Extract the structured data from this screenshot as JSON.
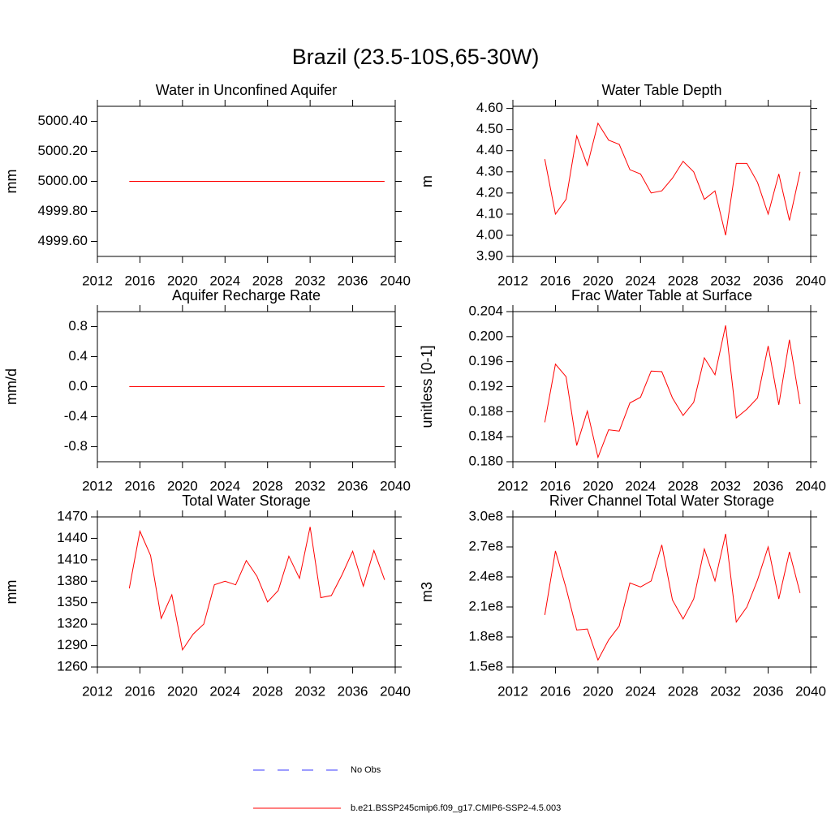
{
  "title": "Brazil (23.5-10S,65-30W)",
  "legend": [
    {
      "name": "No Obs",
      "color": "#3a3aff",
      "dashed": true
    },
    {
      "name": "b.e21.BSSP245cmip6.f09_g17.CMIP6-SSP2-4.5.003",
      "color": "#ff0000",
      "dashed": false
    }
  ],
  "chart_data": [
    {
      "type": "line",
      "title": "Water in Unconfined Aquifer",
      "y_label": "mm",
      "color": "#ff0000",
      "x": [
        2015,
        2016,
        2017,
        2018,
        2019,
        2020,
        2021,
        2022,
        2023,
        2024,
        2025,
        2026,
        2027,
        2028,
        2029,
        2030,
        2031,
        2032,
        2033,
        2034,
        2035,
        2036,
        2037,
        2038,
        2039
      ],
      "values": [
        5000,
        5000,
        5000,
        5000,
        5000,
        5000,
        5000,
        5000,
        5000,
        5000,
        5000,
        5000,
        5000,
        5000,
        5000,
        5000,
        5000,
        5000,
        5000,
        5000,
        5000,
        5000,
        5000,
        5000,
        5000
      ],
      "xlim": [
        2012,
        2040
      ],
      "xticks": [
        2012,
        2016,
        2020,
        2024,
        2028,
        2032,
        2036,
        2040
      ],
      "ylim": [
        4999.5,
        5000.5
      ],
      "yticks": [
        {
          "value": 4999.6,
          "label": "4999.60"
        },
        {
          "value": 4999.8,
          "label": "4999.80"
        },
        {
          "value": 5000,
          "label": "5000.00"
        },
        {
          "value": 5000.2,
          "label": "5000.20"
        },
        {
          "value": 5000.4,
          "label": "5000.40"
        }
      ]
    },
    {
      "type": "line",
      "title": "Water Table Depth",
      "y_label": "m",
      "color": "#ff0000",
      "x": [
        2015,
        2016,
        2017,
        2018,
        2019,
        2020,
        2021,
        2022,
        2023,
        2024,
        2025,
        2026,
        2027,
        2028,
        2029,
        2030,
        2031,
        2032,
        2033,
        2034,
        2035,
        2036,
        2037,
        2038,
        2039
      ],
      "values": [
        4.36,
        4.1,
        4.17,
        4.47,
        4.33,
        4.53,
        4.45,
        4.43,
        4.31,
        4.29,
        4.2,
        4.21,
        4.27,
        4.35,
        4.3,
        4.17,
        4.21,
        4.0,
        4.34,
        4.34,
        4.25,
        4.1,
        4.29,
        4.07,
        4.3
      ],
      "xlim": [
        2012,
        2040
      ],
      "xticks": [
        2012,
        2016,
        2020,
        2024,
        2028,
        2032,
        2036,
        2040
      ],
      "ylim": [
        3.9,
        4.61
      ],
      "yticks": [
        {
          "value": 3.9,
          "label": "3.90"
        },
        {
          "value": 4.0,
          "label": "4.00"
        },
        {
          "value": 4.1,
          "label": "4.10"
        },
        {
          "value": 4.2,
          "label": "4.20"
        },
        {
          "value": 4.3,
          "label": "4.30"
        },
        {
          "value": 4.4,
          "label": "4.40"
        },
        {
          "value": 4.5,
          "label": "4.50"
        },
        {
          "value": 4.6,
          "label": "4.60"
        }
      ]
    },
    {
      "type": "line",
      "title": "Aquifer Recharge Rate",
      "y_label": "mm/d",
      "color": "#ff0000",
      "x": [
        2015,
        2016,
        2017,
        2018,
        2019,
        2020,
        2021,
        2022,
        2023,
        2024,
        2025,
        2026,
        2027,
        2028,
        2029,
        2030,
        2031,
        2032,
        2033,
        2034,
        2035,
        2036,
        2037,
        2038,
        2039
      ],
      "values": [
        0,
        0,
        0,
        0,
        0,
        0,
        0,
        0,
        0,
        0,
        0,
        0,
        0,
        0,
        0,
        0,
        0,
        0,
        0,
        0,
        0,
        0,
        0,
        0,
        0
      ],
      "xlim": [
        2012,
        2040
      ],
      "xticks": [
        2012,
        2016,
        2020,
        2024,
        2028,
        2032,
        2036,
        2040
      ],
      "ylim": [
        -1,
        1
      ],
      "yticks": [
        -0.8,
        -0.4,
        {
          "value": 0,
          "label": "0.0"
        },
        0.4,
        0.8
      ]
    },
    {
      "type": "line",
      "title": "Frac Water Table at Surface",
      "y_label": "unitless [0-1]",
      "color": "#ff0000",
      "x": [
        2015,
        2016,
        2017,
        2018,
        2019,
        2020,
        2021,
        2022,
        2023,
        2024,
        2025,
        2026,
        2027,
        2028,
        2029,
        2030,
        2031,
        2032,
        2033,
        2034,
        2035,
        2036,
        2037,
        2038,
        2039
      ],
      "values": [
        0.1863,
        0.1956,
        0.1936,
        0.1826,
        0.1881,
        0.1807,
        0.1851,
        0.1849,
        0.1894,
        0.1903,
        0.1945,
        0.1944,
        0.1902,
        0.1874,
        0.1895,
        0.1966,
        0.1939,
        0.2018,
        0.187,
        0.1884,
        0.1902,
        0.1985,
        0.1891,
        0.1995,
        0.1892
      ],
      "xlim": [
        2012,
        2040
      ],
      "xticks": [
        2012,
        2016,
        2020,
        2024,
        2028,
        2032,
        2036,
        2040
      ],
      "ylim": [
        0.18,
        0.204
      ],
      "yticks": [
        {
          "value": 0.18,
          "label": "0.180"
        },
        0.184,
        0.188,
        0.192,
        0.196,
        {
          "value": 0.2,
          "label": "0.200"
        },
        0.204
      ]
    },
    {
      "type": "line",
      "title": "Total Water Storage",
      "y_label": "mm",
      "color": "#ff0000",
      "x": [
        2015,
        2016,
        2017,
        2018,
        2019,
        2020,
        2021,
        2022,
        2023,
        2024,
        2025,
        2026,
        2027,
        2028,
        2029,
        2030,
        2031,
        2032,
        2033,
        2034,
        2035,
        2036,
        2037,
        2038,
        2039
      ],
      "values": [
        1370,
        1450,
        1416,
        1328,
        1361,
        1284,
        1306,
        1320,
        1375,
        1380,
        1375,
        1409,
        1387,
        1351,
        1367,
        1415,
        1384,
        1456,
        1357,
        1360,
        1389,
        1422,
        1373,
        1423,
        1382
      ],
      "xlim": [
        2012,
        2040
      ],
      "xticks": [
        2012,
        2016,
        2020,
        2024,
        2028,
        2032,
        2036,
        2040
      ],
      "ylim": [
        1260,
        1470
      ],
      "yticks": [
        1260,
        1290,
        1320,
        1350,
        1380,
        1410,
        1440,
        1470
      ]
    },
    {
      "type": "line",
      "title": "River Channel Total Water Storage",
      "y_label": "m3",
      "color": "#ff0000",
      "x": [
        2015,
        2016,
        2017,
        2018,
        2019,
        2020,
        2021,
        2022,
        2023,
        2024,
        2025,
        2026,
        2027,
        2028,
        2029,
        2030,
        2031,
        2032,
        2033,
        2034,
        2035,
        2036,
        2037,
        2038,
        2039
      ],
      "values": [
        202000000,
        266000000,
        229000000,
        187000000,
        188000000,
        157000000,
        177000000,
        191000000,
        234000000,
        230000000,
        236000000,
        272000000,
        217000000,
        198000000,
        218000000,
        268000000,
        236000000,
        283000000,
        195000000,
        210000000,
        237000000,
        270000000,
        218000000,
        265000000,
        224000000
      ],
      "xlim": [
        2012,
        2040
      ],
      "xticks": [
        2012,
        2016,
        2020,
        2024,
        2028,
        2032,
        2036,
        2040
      ],
      "ylim": [
        150000000,
        300000000
      ],
      "yticks": [
        {
          "value": 150000000,
          "label": "1.5e8"
        },
        {
          "value": 180000000,
          "label": "1.8e8"
        },
        {
          "value": 210000000,
          "label": "2.1e8"
        },
        {
          "value": 240000000,
          "label": "2.4e8"
        },
        {
          "value": 270000000,
          "label": "2.7e8"
        },
        {
          "value": 300000000,
          "label": "3.0e8"
        }
      ]
    }
  ]
}
